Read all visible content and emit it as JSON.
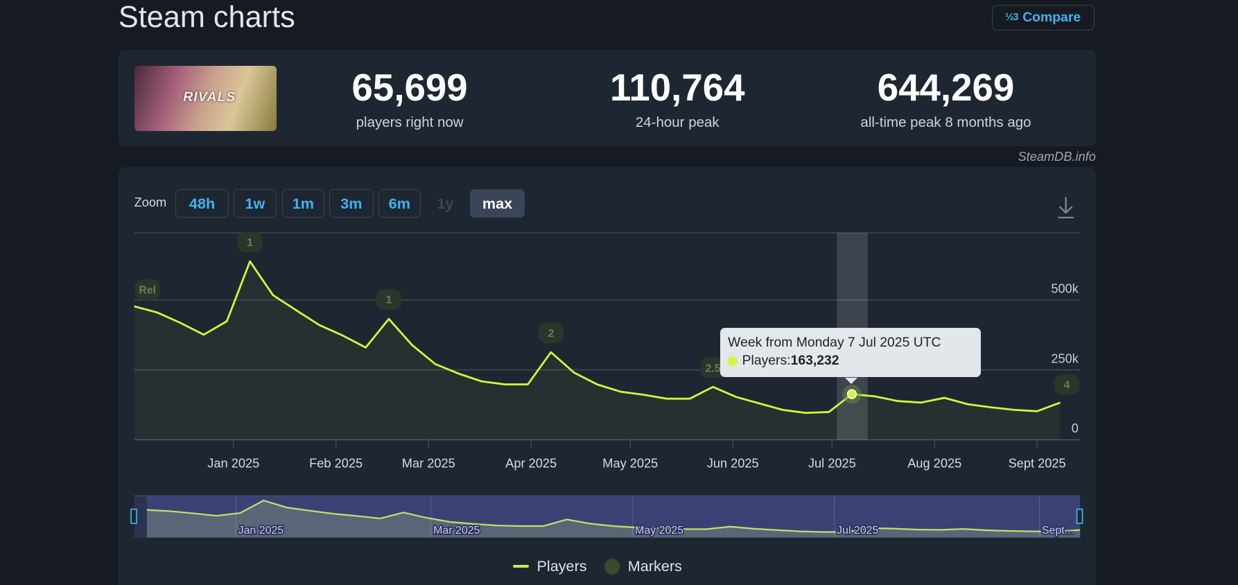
{
  "header": {
    "title": "Steam charts",
    "compare_label": "Compare",
    "compare_icon": "fraction-icon"
  },
  "stats": [
    {
      "value": "65,699",
      "label": "players right now"
    },
    {
      "value": "110,764",
      "label": "24-hour peak"
    },
    {
      "value": "644,269",
      "label": "all-time peak 8 months ago"
    }
  ],
  "game_image_text": "RIVALS",
  "source": "SteamDB.info",
  "zoom": {
    "label": "Zoom",
    "buttons": [
      {
        "label": "48h",
        "state": "enabled"
      },
      {
        "label": "1w",
        "state": "enabled"
      },
      {
        "label": "1m",
        "state": "enabled"
      },
      {
        "label": "3m",
        "state": "enabled"
      },
      {
        "label": "6m",
        "state": "enabled"
      },
      {
        "label": "1y",
        "state": "disabled"
      },
      {
        "label": "max",
        "state": "active"
      }
    ]
  },
  "download_icon": "download-icon",
  "tooltip": {
    "title": "Week from Monday 7 Jul 2025 UTC",
    "series": "Players: ",
    "value": "163,232"
  },
  "legend": {
    "players": "Players",
    "markers": "Markers"
  },
  "colors": {
    "line": "#d3f53b",
    "marker": "#34422a",
    "accent": "#3fb4f0",
    "navigator": "#3a4275"
  },
  "chart_data": {
    "type": "line",
    "ylim": [
      0,
      740000
    ],
    "yticks": [
      {
        "v": 0,
        "label": "0"
      },
      {
        "v": 250000,
        "label": "250k"
      },
      {
        "v": 500000,
        "label": "500k"
      }
    ],
    "xlim": [
      "2024-12-02",
      "2025-09-14"
    ],
    "xticks": [
      {
        "d": "2025-01-01",
        "label": "Jan 2025"
      },
      {
        "d": "2025-02-01",
        "label": "Feb 2025"
      },
      {
        "d": "2025-03-01",
        "label": "Mar 2025"
      },
      {
        "d": "2025-04-01",
        "label": "Apr 2025"
      },
      {
        "d": "2025-05-01",
        "label": "May 2025"
      },
      {
        "d": "2025-06-01",
        "label": "Jun 2025"
      },
      {
        "d": "2025-07-01",
        "label": "Jul 2025"
      },
      {
        "d": "2025-08-01",
        "label": "Aug 2025"
      },
      {
        "d": "2025-09-01",
        "label": "Sept 2025"
      }
    ],
    "grid": true,
    "series": [
      {
        "name": "Players",
        "x_start": "2024-12-02",
        "interval": "week",
        "values": [
          477000,
          455000,
          418000,
          376000,
          424000,
          638000,
          517000,
          463000,
          410000,
          373000,
          330000,
          432000,
          339000,
          271000,
          237000,
          209000,
          198000,
          198000,
          313000,
          240000,
          198000,
          172000,
          161000,
          147000,
          147000,
          189000,
          153000,
          130000,
          107000,
          96000,
          99000,
          163232,
          155000,
          138000,
          133000,
          150000,
          127000,
          116000,
          107000,
          102000,
          133000
        ]
      }
    ],
    "markers": [
      {
        "d": "2024-12-06",
        "label": "Rel",
        "v": 540000
      },
      {
        "d": "2025-01-06",
        "label": "1",
        "v": 710000
      },
      {
        "d": "2025-02-17",
        "label": "1",
        "v": 505000
      },
      {
        "d": "2025-04-07",
        "label": "2",
        "v": 385000
      },
      {
        "d": "2025-05-26",
        "label": "2.5",
        "v": 260000
      },
      {
        "d": "2025-09-10",
        "label": "4",
        "v": 200000
      }
    ],
    "highlight": "2025-07-07",
    "navigator": {
      "xticks": [
        {
          "d": "2025-01-01",
          "label": "Jan 2025"
        },
        {
          "d": "2025-03-01",
          "label": "Mar 2025"
        },
        {
          "d": "2025-05-01",
          "label": "May 2025"
        },
        {
          "d": "2025-07-01",
          "label": "Jul 2025"
        },
        {
          "d": "2025-09-01",
          "label": "Sept..."
        }
      ]
    }
  }
}
